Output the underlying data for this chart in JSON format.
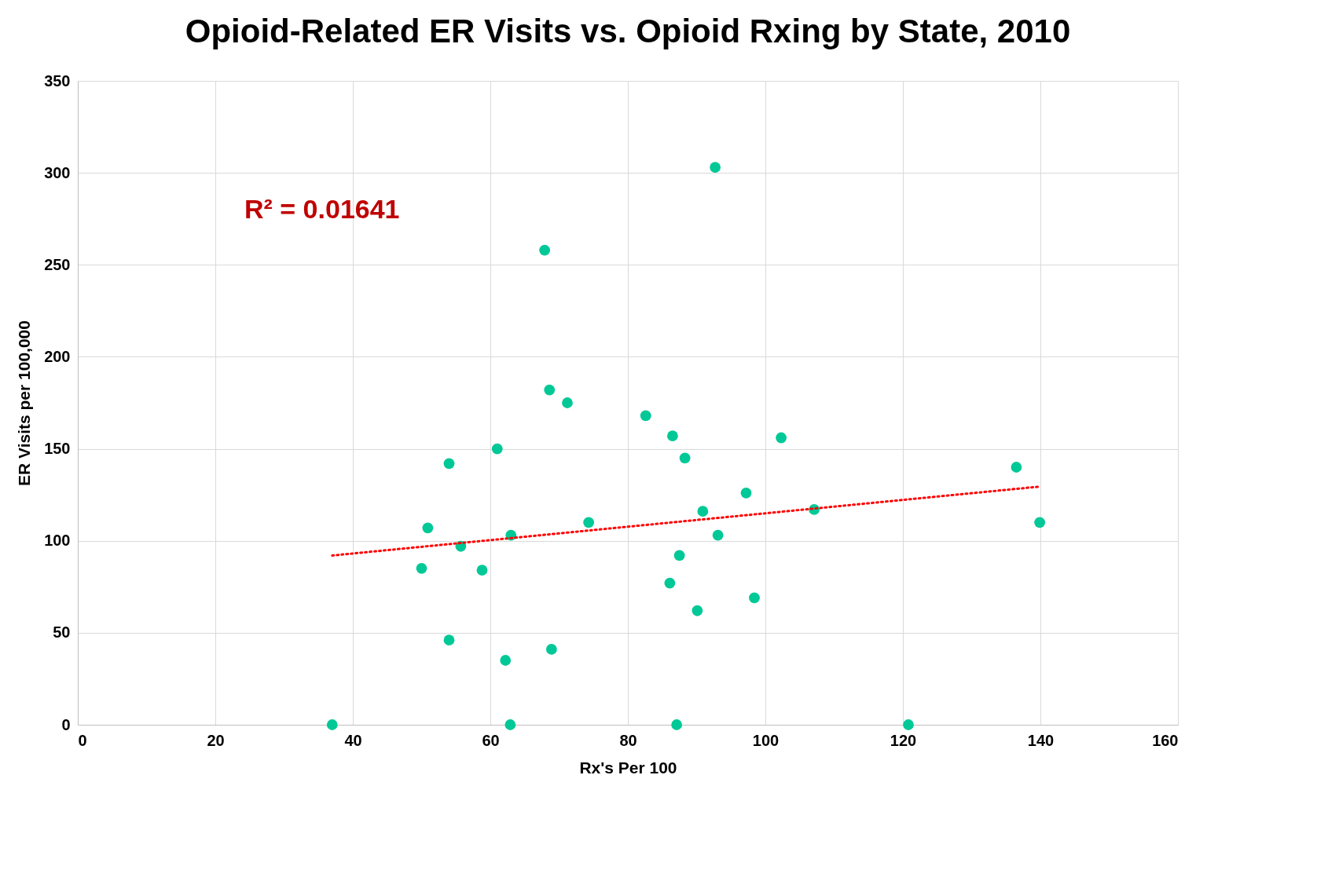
{
  "chart_data": {
    "type": "scatter",
    "title": "Opioid-Related ER Visits vs. Opioid Rxing by State, 2010",
    "xlabel": "Rx's Per 100",
    "ylabel": "ER Visits per 100,000",
    "x": [
      37,
      50.0,
      50.9,
      54.0,
      54.0,
      55.7,
      58.8,
      61.0,
      62.2,
      62.9,
      63.0,
      67.9,
      68.6,
      68.9,
      71.2,
      74.3,
      82.6,
      86.1,
      86.5,
      87.1,
      87.5,
      88.3,
      90.1,
      90.9,
      92.7,
      93.1,
      97.2,
      98.4,
      102.3,
      107.1,
      120.8,
      136.5,
      139.9
    ],
    "series": [
      {
        "type": "scatter",
        "color": "#00c896",
        "values": [
          0,
          85,
          107,
          142,
          46,
          97,
          84,
          150,
          35,
          0,
          103,
          258,
          182,
          41,
          175,
          110,
          168,
          77,
          157,
          0,
          92,
          145,
          62,
          116,
          303,
          103,
          126,
          69,
          156,
          117,
          0,
          140,
          110
        ]
      },
      {
        "type": "line",
        "color": "#ff0000",
        "line_style": "dotted",
        "marker": "none",
        "x": [
          37,
          140
        ],
        "values": [
          92,
          129.5
        ]
      }
    ],
    "marker": "circle",
    "annotations": [
      "R² = 0.01641"
    ],
    "xlim": [
      0,
      160
    ],
    "xticks": [
      0,
      20,
      40,
      60,
      80,
      100,
      120,
      140,
      160
    ],
    "ylim": [
      0,
      350
    ],
    "yticks": [
      0,
      50,
      100,
      150,
      200,
      250,
      300,
      350
    ],
    "grid": true,
    "legend": false
  }
}
